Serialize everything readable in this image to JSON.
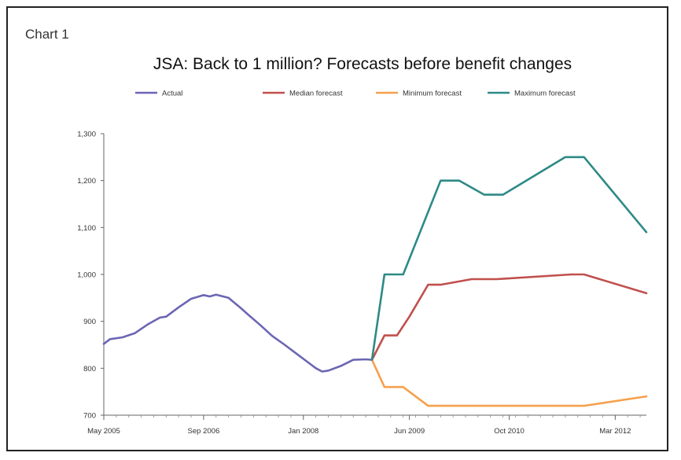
{
  "header": {
    "chart_label": "Chart 1"
  },
  "chart_data": {
    "type": "line",
    "title": "JSA: Back to 1 million? Forecasts before benefit changes",
    "xlabel": "",
    "ylabel": "",
    "ylim": [
      700,
      1300
    ],
    "yticks": [
      700,
      800,
      900,
      1000,
      1100,
      1200,
      1300
    ],
    "ytick_labels": [
      "700",
      "800",
      "900",
      "1,000",
      "1,100",
      "1,200",
      "1,300"
    ],
    "xrange": [
      "2005-05",
      "2012-08"
    ],
    "xtick_labels": [
      "May 2005",
      "Sep 2006",
      "Jan 2008",
      "Jun 2009",
      "Oct 2010",
      "Mar 2012"
    ],
    "xtick_positions": [
      "2005-05",
      "2006-09",
      "2008-01",
      "2009-06",
      "2010-10",
      "2012-03"
    ],
    "grid": false,
    "legend_position": "top",
    "series": [
      {
        "name": "Actual",
        "color": "#6b66b3",
        "points": [
          [
            "2005-05",
            852
          ],
          [
            "2005-06",
            862
          ],
          [
            "2005-08",
            866
          ],
          [
            "2005-10",
            875
          ],
          [
            "2005-12",
            893
          ],
          [
            "2006-02",
            908
          ],
          [
            "2006-03",
            910
          ],
          [
            "2006-05",
            930
          ],
          [
            "2006-07",
            948
          ],
          [
            "2006-09",
            956
          ],
          [
            "2006-10",
            953
          ],
          [
            "2006-11",
            957
          ],
          [
            "2007-01",
            950
          ],
          [
            "2007-03",
            928
          ],
          [
            "2007-04",
            916
          ],
          [
            "2007-06",
            893
          ],
          [
            "2007-08",
            869
          ],
          [
            "2007-10",
            850
          ],
          [
            "2007-12",
            830
          ],
          [
            "2008-01",
            820
          ],
          [
            "2008-03",
            800
          ],
          [
            "2008-04",
            793
          ],
          [
            "2008-05",
            795
          ],
          [
            "2008-07",
            805
          ],
          [
            "2008-09",
            818
          ],
          [
            "2008-11",
            819
          ],
          [
            "2008-12",
            818
          ]
        ]
      },
      {
        "name": "Median forecast",
        "color": "#c0504d",
        "points": [
          [
            "2008-12",
            818
          ],
          [
            "2009-02",
            870
          ],
          [
            "2009-04",
            870
          ],
          [
            "2009-06",
            910
          ],
          [
            "2009-09",
            978
          ],
          [
            "2009-11",
            978
          ],
          [
            "2010-04",
            990
          ],
          [
            "2010-08",
            990
          ],
          [
            "2011-08",
            1000
          ],
          [
            "2011-10",
            1000
          ],
          [
            "2012-08",
            960
          ]
        ]
      },
      {
        "name": "Minimum forecast",
        "color": "#f6a04d",
        "points": [
          [
            "2008-12",
            818
          ],
          [
            "2009-02",
            760
          ],
          [
            "2009-05",
            760
          ],
          [
            "2009-09",
            720
          ],
          [
            "2011-10",
            720
          ],
          [
            "2012-08",
            740
          ]
        ]
      },
      {
        "name": "Maximum forecast",
        "color": "#2d8a86",
        "points": [
          [
            "2008-12",
            818
          ],
          [
            "2009-02",
            1000
          ],
          [
            "2009-05",
            1000
          ],
          [
            "2009-11",
            1200
          ],
          [
            "2010-02",
            1200
          ],
          [
            "2010-06",
            1170
          ],
          [
            "2010-09",
            1170
          ],
          [
            "2011-07",
            1250
          ],
          [
            "2011-10",
            1250
          ],
          [
            "2012-08",
            1090
          ]
        ]
      }
    ]
  }
}
